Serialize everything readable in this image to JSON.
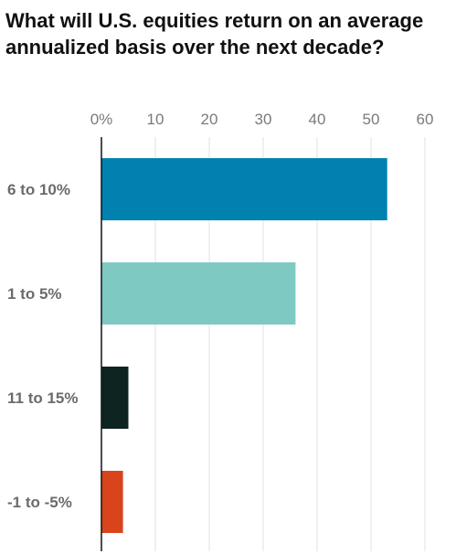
{
  "chart_data": {
    "type": "bar",
    "orientation": "horizontal",
    "title": "What will U.S. equities return on an average annualized basis over the next decade?",
    "categories": [
      "6 to 10%",
      "1 to 5%",
      "11 to 15%",
      "-1 to -5%"
    ],
    "values": [
      53,
      36,
      5,
      4
    ],
    "colors": [
      "#0081b0",
      "#7ecac3",
      "#0d2421",
      "#d9441c"
    ],
    "xlim": [
      0,
      60
    ],
    "xticks": [
      0,
      10,
      20,
      30,
      40,
      50,
      60
    ],
    "xtick_labels": [
      "0%",
      "10",
      "20",
      "30",
      "40",
      "50",
      "60"
    ],
    "xaxis_position": "top",
    "grid": true,
    "legend": "none"
  }
}
